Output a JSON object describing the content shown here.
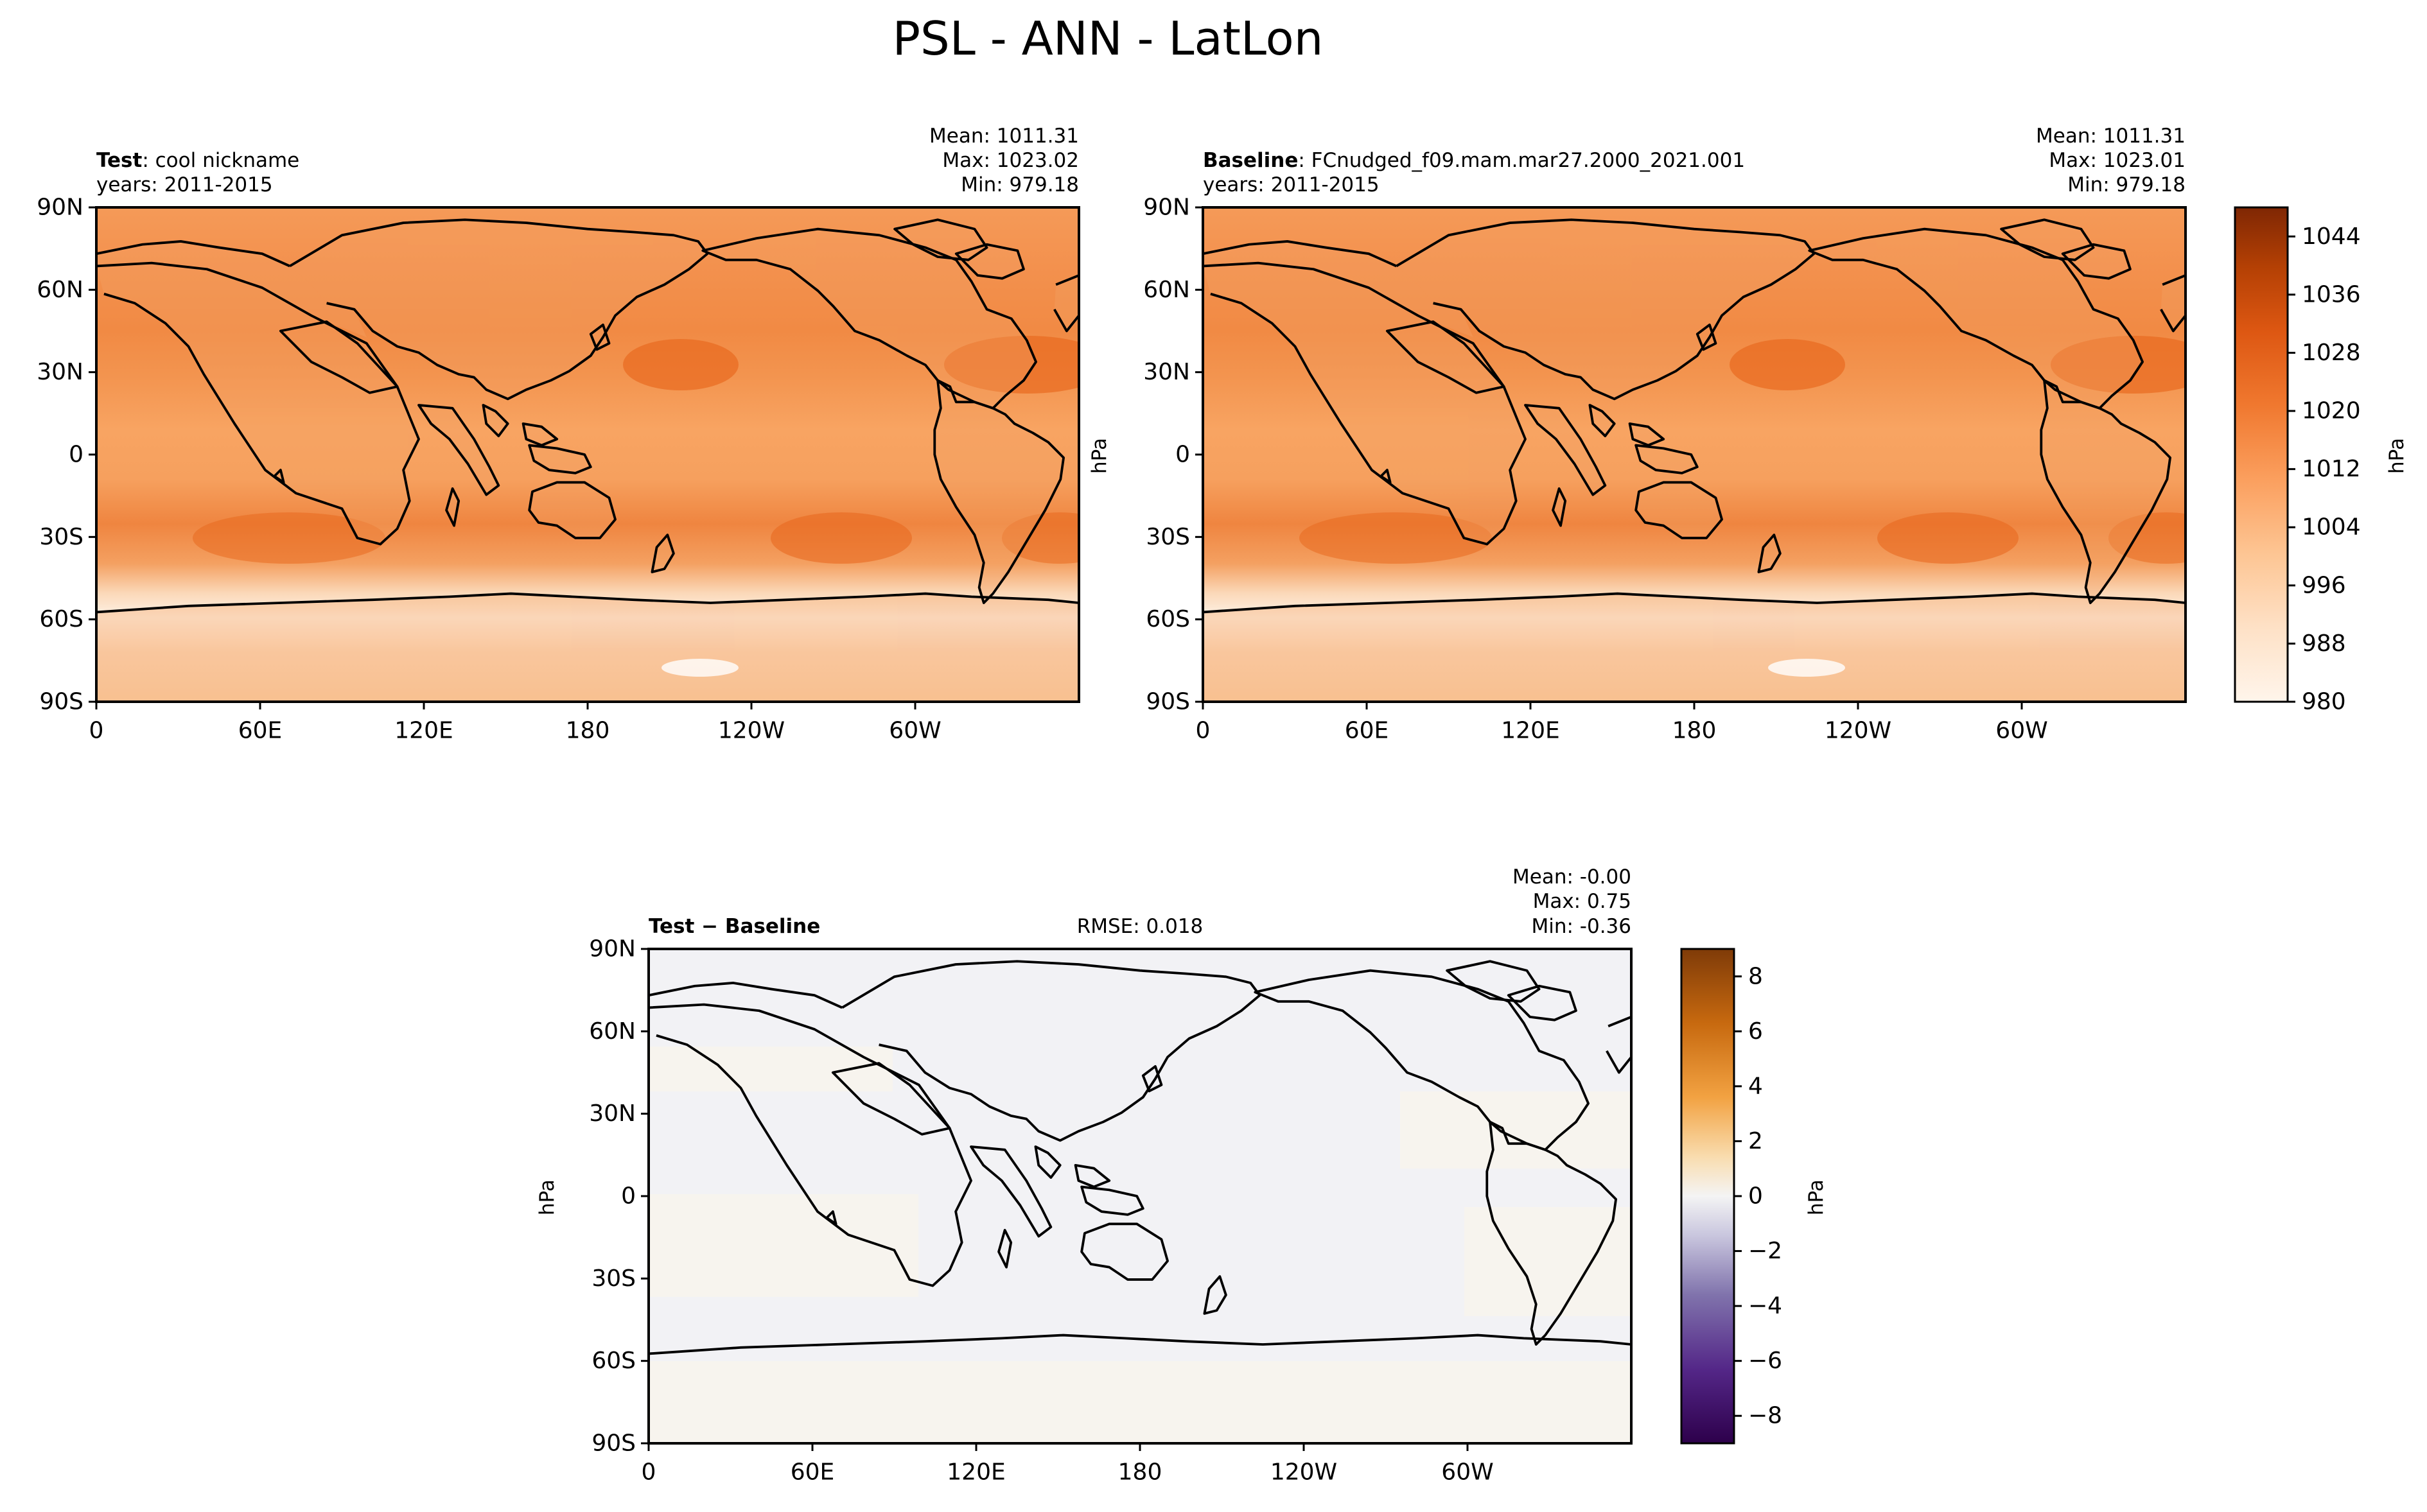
{
  "figure": {
    "title": "PSL - ANN - LatLon"
  },
  "test_panel": {
    "label_bold": "Test",
    "label_rest": ": cool nickname",
    "years": "years: 2011-2015",
    "stats": {
      "mean": "Mean: 1011.31",
      "max": "Max: 1023.02",
      "min": "Min: 979.18"
    }
  },
  "baseline_panel": {
    "label_bold": "Baseline",
    "label_rest": ": FCnudged_f09.mam.mar27.2000_2021.001",
    "years": "years: 2011-2015",
    "stats": {
      "mean": "Mean: 1011.31",
      "max": "Max: 1023.01",
      "min": "Min: 979.18"
    }
  },
  "diff_panel": {
    "label": "Test − Baseline",
    "rmse": "RMSE: 0.018",
    "stats": {
      "mean": "Mean: -0.00",
      "max": "Max:  0.75",
      "min": "Min: -0.36"
    }
  },
  "axes": {
    "lat_ticks": [
      "90N",
      "60N",
      "30N",
      "0",
      "30S",
      "60S",
      "90S"
    ],
    "lon_ticks": [
      "0",
      "60E",
      "120E",
      "180",
      "120W",
      "60W"
    ],
    "unit_label": "hPa"
  },
  "colorbar_main": {
    "ticks": [
      "1044",
      "1036",
      "1028",
      "1020",
      "1012",
      "1004",
      "996",
      "988",
      "980"
    ],
    "label": "hPa"
  },
  "colorbar_diff": {
    "ticks": [
      "8",
      "6",
      "4",
      "2",
      "0",
      "−2",
      "−4",
      "−6",
      "−8"
    ],
    "label": "hPa"
  },
  "colors": {
    "orange_light": "#fdf0e3",
    "orange_mid": "#f8a15c",
    "orange_dark": "#e66e24",
    "diff_background": "#f3f3f5",
    "diff_warm": "#f7f4ee"
  }
}
